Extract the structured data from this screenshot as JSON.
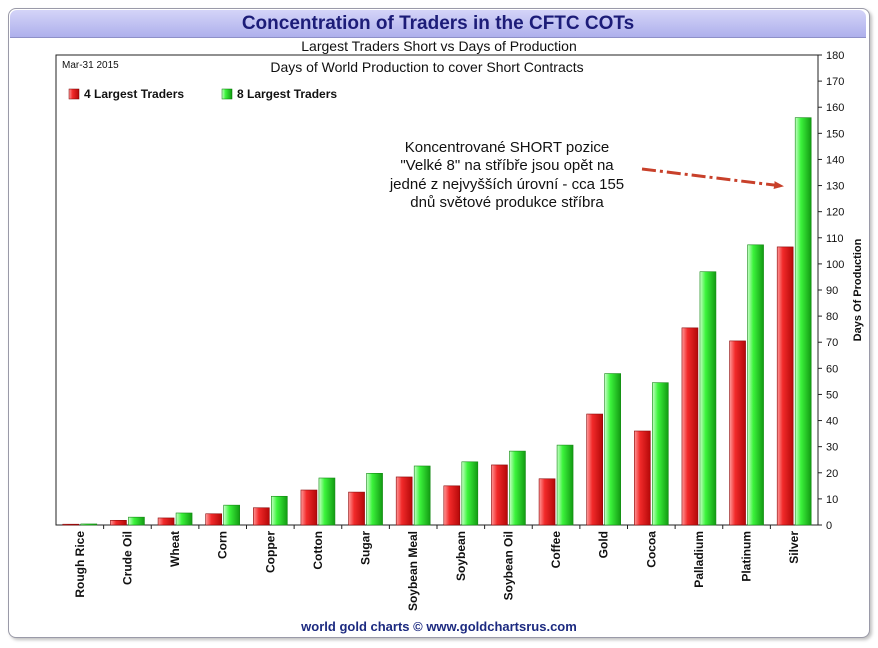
{
  "title": "Concentration of Traders in the CFTC COTs",
  "subtitle": "Largest Traders Short vs Days of Production",
  "footer": "world gold charts © www.goldchartsrus.com",
  "chart_data": {
    "type": "bar",
    "date_label": "Mar-31  2015",
    "plot_title": "Days of World Production to cover Short Contracts",
    "ylabel": "Days Of Production",
    "ylim": [
      0,
      180
    ],
    "yticks": [
      0,
      10,
      20,
      30,
      40,
      50,
      60,
      70,
      80,
      90,
      100,
      110,
      120,
      130,
      140,
      150,
      160,
      170,
      180
    ],
    "categories": [
      "Rough Rice",
      "Crude Oil",
      "Wheat",
      "Corn",
      "Copper",
      "Cotton",
      "Sugar",
      "Soybean Meal",
      "Soybean",
      "Soybean Oil",
      "Coffee",
      "Gold",
      "Cocoa",
      "Palladium",
      "Platinum",
      "Silver"
    ],
    "series": [
      {
        "name": "4 Largest Traders",
        "color": "#e82020",
        "values": [
          0.3,
          1.8,
          2.7,
          4.3,
          6.6,
          13.4,
          12.6,
          18.4,
          15.0,
          23.0,
          17.7,
          42.5,
          36.0,
          75.5,
          70.5,
          106.5
        ]
      },
      {
        "name": "8 Largest Traders",
        "color": "#33ee33",
        "values": [
          0.4,
          3.0,
          4.6,
          7.6,
          11.0,
          18.0,
          19.8,
          22.6,
          24.2,
          28.3,
          30.6,
          58.0,
          54.5,
          97.0,
          107.3,
          156.0
        ]
      }
    ],
    "annotation": [
      "Koncentrované SHORT pozice",
      "\"Velké 8\" na stříbře  jsou opět na",
      "jedné z nejvyšších úrovní - cca 155",
      "dnů světové produkce stříbra"
    ],
    "grid": false,
    "legend": "top-left"
  }
}
